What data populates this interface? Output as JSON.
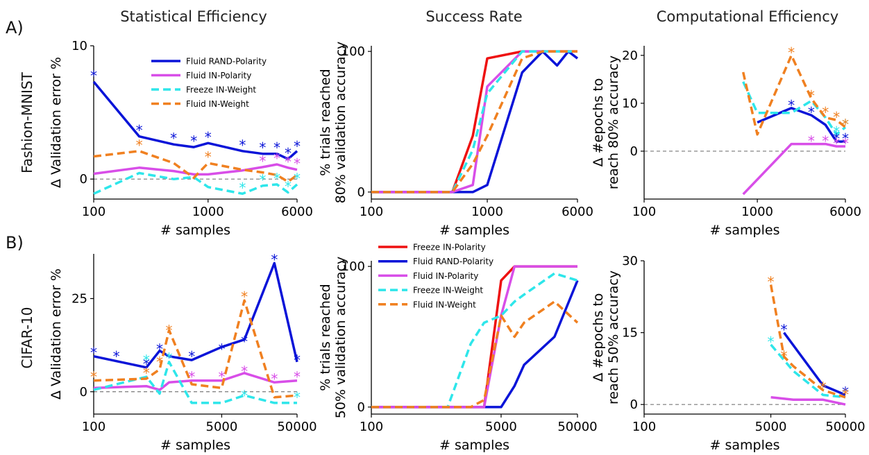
{
  "figure": {
    "column_titles": [
      "Statistical Efficiency",
      "Success Rate",
      "Computational Efficiency"
    ],
    "row_panel_labels": [
      "A)",
      "B)"
    ],
    "row_dataset_labels": [
      "Fashion-MNIST",
      "CIFAR-10"
    ],
    "colors": {
      "Freeze IN-Polarity": "#ee1111",
      "Fluid RAND-Polarity": "#0a14d8",
      "Fluid IN-Polarity": "#d84ee8",
      "Freeze IN-Weight": "#2ee6ea",
      "Fluid IN-Weight": "#f08020"
    }
  },
  "chart_data": [
    {
      "id": "fm-stat",
      "type": "line",
      "title": "Statistical Efficiency",
      "xlabel": "# samples",
      "ylabel": "Δ Validation error %",
      "xscale": "log",
      "xlim": [
        100,
        6000
      ],
      "ylim": [
        -1.5,
        10
      ],
      "xticks": [
        100,
        1000,
        6000
      ],
      "xtick_labels": [
        "100",
        "1000",
        "6000"
      ],
      "yticks": [
        0,
        10
      ],
      "ytick_labels": [
        "0",
        "10"
      ],
      "zero_line": true,
      "legend": "top-right",
      "legend_entries": [
        "Fluid RAND-Polarity",
        "Fluid IN-Polarity",
        "Freeze IN-Weight",
        "Fluid IN-Weight"
      ],
      "series": [
        {
          "name": "Fluid RAND-Polarity",
          "style": "solid",
          "x": [
            100,
            250,
            500,
            750,
            1000,
            2000,
            3000,
            4000,
            5000,
            6000
          ],
          "y": [
            7.3,
            3.2,
            2.6,
            2.4,
            2.7,
            2.1,
            1.9,
            1.9,
            1.5,
            2.1
          ]
        },
        {
          "name": "Fluid IN-Polarity",
          "style": "solid",
          "x": [
            100,
            250,
            500,
            750,
            1000,
            2000,
            3000,
            4000,
            5000,
            6000
          ],
          "y": [
            0.4,
            0.85,
            0.6,
            0.35,
            0.35,
            0.65,
            0.9,
            1.1,
            0.85,
            0.7
          ]
        },
        {
          "name": "Freeze IN-Weight",
          "style": "dashed",
          "x": [
            100,
            250,
            500,
            750,
            1000,
            2000,
            3000,
            4000,
            5000,
            6000
          ],
          "y": [
            -1.1,
            0.45,
            0.0,
            0.15,
            -0.6,
            -1.1,
            -0.5,
            -0.4,
            -1.0,
            -0.4
          ]
        },
        {
          "name": "Fluid IN-Weight",
          "style": "dashed",
          "x": [
            100,
            250,
            500,
            750,
            1000,
            2000,
            3000,
            4000,
            5000,
            6000
          ],
          "y": [
            1.7,
            2.1,
            1.2,
            0.1,
            1.2,
            0.7,
            0.5,
            0.3,
            -0.2,
            0.3
          ]
        }
      ],
      "stars": [
        {
          "series": "Fluid RAND-Polarity",
          "x": [
            100,
            250,
            500,
            750,
            1000,
            2000,
            3000,
            4000,
            5000,
            6000
          ],
          "y": [
            7.9,
            3.8,
            3.2,
            3.0,
            3.3,
            2.7,
            2.5,
            2.5,
            2.1,
            2.6
          ]
        },
        {
          "series": "Fluid IN-Polarity",
          "x": [
            3000,
            4000,
            5000,
            6000
          ],
          "y": [
            1.5,
            1.7,
            1.45,
            1.3
          ]
        },
        {
          "series": "Freeze IN-Weight",
          "x": [
            2000,
            3000,
            4000,
            5000,
            6000
          ],
          "y": [
            -0.5,
            0.1,
            0.2,
            -0.4,
            0.2
          ]
        },
        {
          "series": "Fluid IN-Weight",
          "x": [
            250,
            1000
          ],
          "y": [
            2.7,
            1.8
          ]
        }
      ]
    },
    {
      "id": "fm-succ",
      "type": "line",
      "title": "Success Rate",
      "xlabel": "# samples",
      "ylabel": "% trials reached 80% validation accuracy",
      "xscale": "log",
      "xlim": [
        100,
        6000
      ],
      "ylim": [
        -5,
        104
      ],
      "xticks": [
        100,
        1000,
        6000
      ],
      "xtick_labels": [
        "100",
        "1000",
        "6000"
      ],
      "yticks": [
        0,
        100
      ],
      "ytick_labels": [
        "0",
        "100"
      ],
      "series": [
        {
          "name": "Freeze IN-Polarity",
          "style": "solid",
          "x": [
            100,
            500,
            750,
            1000,
            2000,
            3000,
            4000,
            5000,
            6000
          ],
          "y": [
            0,
            0,
            40,
            95,
            100,
            100,
            100,
            100,
            100
          ]
        },
        {
          "name": "Fluid RAND-Polarity",
          "style": "solid",
          "x": [
            100,
            500,
            750,
            1000,
            2000,
            3000,
            4000,
            5000,
            6000
          ],
          "y": [
            0,
            0,
            0,
            5,
            85,
            100,
            90,
            100,
            95
          ]
        },
        {
          "name": "Fluid IN-Polarity",
          "style": "solid",
          "x": [
            100,
            500,
            750,
            1000,
            2000,
            3000,
            4000,
            5000,
            6000
          ],
          "y": [
            0,
            0,
            5,
            75,
            100,
            100,
            100,
            100,
            100
          ]
        },
        {
          "name": "Freeze IN-Weight",
          "style": "dashed",
          "x": [
            100,
            500,
            750,
            1000,
            2000,
            3000,
            4000,
            5000,
            6000
          ],
          "y": [
            0,
            0,
            30,
            70,
            100,
            100,
            100,
            100,
            100
          ]
        },
        {
          "name": "Fluid IN-Weight",
          "style": "dashed",
          "x": [
            100,
            500,
            750,
            1000,
            2000,
            3000,
            4000,
            5000,
            6000
          ],
          "y": [
            0,
            0,
            20,
            40,
            95,
            100,
            100,
            100,
            100
          ]
        }
      ]
    },
    {
      "id": "fm-comp",
      "type": "line",
      "title": "Computational Efficiency",
      "xlabel": "# samples",
      "ylabel": "Δ #epochs to reach 80% accuracy",
      "xscale": "log",
      "xlim": [
        100,
        6000
      ],
      "ylim": [
        -10,
        22
      ],
      "xticks": [
        100,
        1000,
        6000
      ],
      "xtick_labels": [
        "100",
        "1000",
        "6000"
      ],
      "yticks": [
        0,
        10,
        20
      ],
      "ytick_labels": [
        "0",
        "10",
        "20"
      ],
      "zero_line": true,
      "series": [
        {
          "name": "Fluid RAND-Polarity",
          "style": "solid",
          "x": [
            1000,
            2000,
            3000,
            4000,
            5000,
            6000
          ],
          "y": [
            6,
            9,
            7.5,
            5.5,
            2,
            2
          ]
        },
        {
          "name": "Fluid IN-Polarity",
          "style": "solid",
          "x": [
            750,
            2000,
            3000,
            4000,
            5000,
            6000
          ],
          "y": [
            -9,
            1.5,
            1.5,
            1.5,
            1,
            1
          ]
        },
        {
          "name": "Freeze IN-Weight",
          "style": "dashed",
          "x": [
            750,
            1000,
            2000,
            3000,
            4000,
            5000,
            6000
          ],
          "y": [
            14.5,
            8,
            8,
            10.5,
            7,
            3.5,
            5
          ]
        },
        {
          "name": "Fluid IN-Weight",
          "style": "dashed",
          "x": [
            750,
            1000,
            2000,
            3000,
            4000,
            5000,
            6000
          ],
          "y": [
            16.5,
            3.5,
            20,
            11,
            7,
            6.5,
            5
          ]
        }
      ],
      "stars": [
        {
          "series": "Fluid RAND-Polarity",
          "x": [
            2000,
            3000,
            5000,
            6000
          ],
          "y": [
            10,
            8.5,
            3,
            3
          ]
        },
        {
          "series": "Fluid IN-Polarity",
          "x": [
            3000,
            4000,
            5000,
            6000
          ],
          "y": [
            2.5,
            2.5,
            2,
            2
          ]
        },
        {
          "series": "Freeze IN-Weight",
          "x": [
            5000,
            6000
          ],
          "y": [
            4.5,
            6
          ]
        },
        {
          "series": "Fluid IN-Weight",
          "x": [
            2000,
            3000,
            4000,
            5000,
            6000
          ],
          "y": [
            21,
            12,
            8.5,
            7.5,
            6
          ]
        }
      ]
    },
    {
      "id": "cf-stat",
      "type": "line",
      "title": "Statistical Efficiency",
      "xlabel": "# samples",
      "ylabel": "Δ Validation error %",
      "xscale": "log",
      "xlim": [
        100,
        50000
      ],
      "ylim": [
        -6,
        37
      ],
      "xticks": [
        100,
        5000,
        50000
      ],
      "xtick_labels": [
        "100",
        "5000",
        "50000"
      ],
      "yticks": [
        0,
        25
      ],
      "ytick_labels": [
        "0",
        "25"
      ],
      "zero_line": true,
      "series": [
        {
          "name": "Fluid RAND-Polarity",
          "style": "solid",
          "x": [
            100,
            500,
            750,
            1000,
            2000,
            5000,
            10000,
            25000,
            50000
          ],
          "y": [
            9.5,
            6.5,
            11,
            9.5,
            8.5,
            12,
            14,
            34.5,
            8
          ]
        },
        {
          "name": "Fluid IN-Polarity",
          "style": "solid",
          "x": [
            100,
            500,
            750,
            1000,
            2000,
            5000,
            10000,
            25000,
            50000
          ],
          "y": [
            1,
            1.5,
            0.5,
            2.5,
            3,
            3,
            5,
            2.5,
            3
          ]
        },
        {
          "name": "Freeze IN-Weight",
          "style": "dashed",
          "x": [
            100,
            500,
            750,
            1000,
            2000,
            5000,
            10000,
            25000,
            50000
          ],
          "y": [
            0.5,
            4,
            -0.5,
            8,
            -3,
            -3,
            -1,
            -3,
            -3
          ]
        },
        {
          "name": "Fluid IN-Weight",
          "style": "dashed",
          "x": [
            100,
            500,
            750,
            1000,
            2000,
            5000,
            10000,
            25000,
            50000
          ],
          "y": [
            3,
            3.5,
            6,
            16.5,
            2,
            1,
            24.5,
            -1.5,
            -1
          ]
        }
      ],
      "stars": [
        {
          "series": "Fluid RAND-Polarity",
          "x": [
            100,
            200,
            500,
            750,
            2000,
            5000,
            10000,
            25000,
            50000
          ],
          "y": [
            11,
            10,
            8,
            12,
            10,
            12,
            14,
            36,
            9
          ]
        },
        {
          "series": "Fluid IN-Polarity",
          "x": [
            2000,
            5000,
            10000,
            25000,
            50000
          ],
          "y": [
            4.5,
            4.5,
            6,
            4,
            4.5
          ]
        },
        {
          "series": "Freeze IN-Weight",
          "x": [
            500,
            1000,
            10000,
            50000
          ],
          "y": [
            9,
            9.5,
            -0.5,
            -1
          ]
        },
        {
          "series": "Fluid IN-Weight",
          "x": [
            100,
            500,
            750,
            1000,
            10000
          ],
          "y": [
            4.5,
            5.5,
            8.5,
            17,
            26
          ]
        }
      ]
    },
    {
      "id": "cf-succ",
      "type": "line",
      "title": "Success Rate",
      "xlabel": "# samples",
      "ylabel": "% trials reached 50% validation accuracy",
      "xscale": "log",
      "xlim": [
        100,
        50000
      ],
      "ylim": [
        -5,
        104
      ],
      "xticks": [
        100,
        5000,
        50000
      ],
      "xtick_labels": [
        "100",
        "5000",
        "50000"
      ],
      "yticks": [
        0,
        100
      ],
      "ytick_labels": [
        "0",
        "100"
      ],
      "legend": "top-left",
      "legend_entries": [
        "Freeze IN-Polarity",
        "Fluid RAND-Polarity",
        "Fluid IN-Polarity",
        "Freeze IN-Weight",
        "Fluid IN-Weight"
      ],
      "series": [
        {
          "name": "Freeze IN-Polarity",
          "style": "solid",
          "x": [
            100,
            1000,
            2000,
            3000,
            5000,
            7500,
            10000,
            25000,
            50000
          ],
          "y": [
            0,
            0,
            0,
            0,
            90,
            100,
            100,
            100,
            100
          ]
        },
        {
          "name": "Fluid RAND-Polarity",
          "style": "solid",
          "x": [
            100,
            1000,
            2000,
            3000,
            5000,
            7500,
            10000,
            25000,
            50000
          ],
          "y": [
            0,
            0,
            0,
            0,
            0,
            15,
            30,
            50,
            90
          ]
        },
        {
          "name": "Fluid IN-Polarity",
          "style": "solid",
          "x": [
            100,
            1000,
            2000,
            3000,
            5000,
            7500,
            10000,
            25000,
            50000
          ],
          "y": [
            0,
            0,
            0,
            0,
            65,
            100,
            100,
            100,
            100
          ]
        },
        {
          "name": "Freeze IN-Weight",
          "style": "dashed",
          "x": [
            100,
            1000,
            2000,
            3000,
            5000,
            7500,
            10000,
            25000,
            50000
          ],
          "y": [
            0,
            0,
            45,
            60,
            65,
            75,
            80,
            95,
            90
          ]
        },
        {
          "name": "Fluid IN-Weight",
          "style": "dashed",
          "x": [
            100,
            1000,
            2000,
            3000,
            5000,
            7500,
            10000,
            25000,
            50000
          ],
          "y": [
            0,
            0,
            0,
            5,
            65,
            50,
            60,
            75,
            60
          ]
        }
      ]
    },
    {
      "id": "cf-comp",
      "type": "line",
      "title": "Computational Efficiency",
      "xlabel": "# samples",
      "ylabel": "Δ #epochs to reach 50% accuracy",
      "xscale": "log",
      "xlim": [
        100,
        50000
      ],
      "ylim": [
        -2,
        30
      ],
      "xticks": [
        100,
        5000,
        50000
      ],
      "xtick_labels": [
        "100",
        "5000",
        "50000"
      ],
      "yticks": [
        0,
        15,
        30
      ],
      "ytick_labels": [
        "0",
        "15",
        "30"
      ],
      "zero_line": true,
      "series": [
        {
          "name": "Fluid RAND-Polarity",
          "style": "solid",
          "x": [
            7500,
            25000,
            50000
          ],
          "y": [
            15,
            4,
            2
          ]
        },
        {
          "name": "Fluid IN-Polarity",
          "style": "solid",
          "x": [
            5000,
            10000,
            25000,
            50000
          ],
          "y": [
            1.5,
            1,
            1,
            0
          ]
        },
        {
          "name": "Freeze IN-Weight",
          "style": "dashed",
          "x": [
            5000,
            10000,
            25000,
            50000
          ],
          "y": [
            12.5,
            7,
            2,
            1.5
          ]
        },
        {
          "name": "Fluid IN-Weight",
          "style": "dashed",
          "x": [
            5000,
            7500,
            10000,
            25000,
            50000
          ],
          "y": [
            25,
            10,
            8,
            3,
            1.5
          ]
        }
      ],
      "stars": [
        {
          "series": "Fluid RAND-Polarity",
          "x": [
            7500,
            50000
          ],
          "y": [
            16,
            3
          ]
        },
        {
          "series": "Freeze IN-Weight",
          "x": [
            5000
          ],
          "y": [
            13.5
          ]
        },
        {
          "series": "Fluid IN-Weight",
          "x": [
            5000,
            7500,
            25000,
            50000
          ],
          "y": [
            26,
            10.5,
            4,
            2.5
          ]
        }
      ]
    }
  ]
}
